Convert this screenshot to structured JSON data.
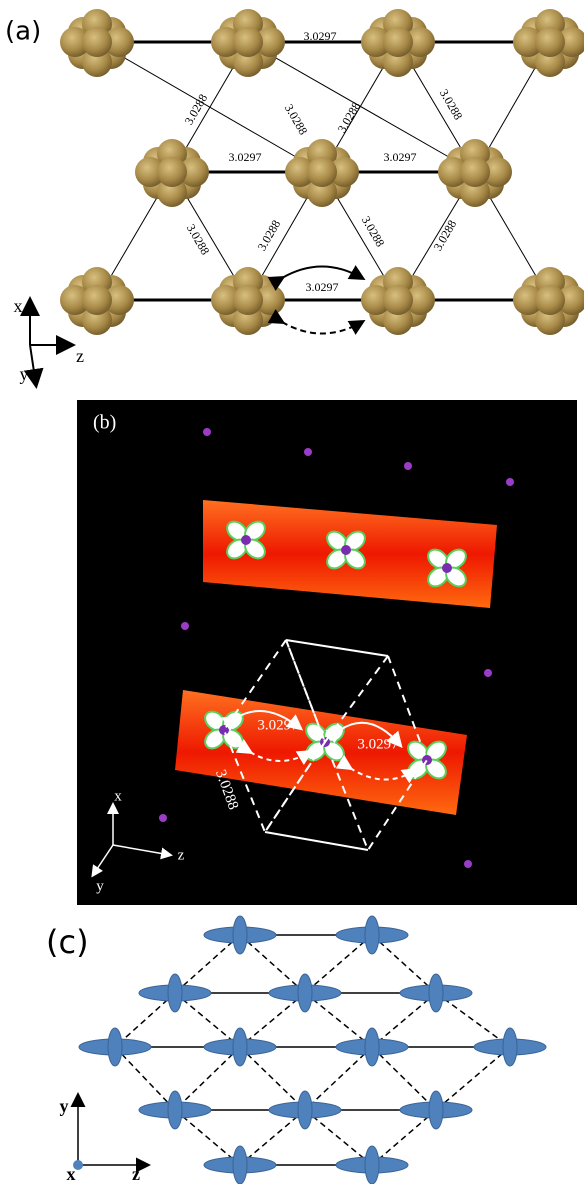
{
  "panel_a": {
    "label": "(a)",
    "distances": [
      "3.0297",
      "3.0288",
      "3.0288",
      "3.0288",
      "3.0288",
      "3.0297",
      "3.0297",
      "3.0288",
      "3.0288",
      "3.0288",
      "3.0288",
      "3.0297"
    ],
    "axes": [
      "x",
      "z",
      "y"
    ]
  },
  "panel_b": {
    "label": "(b)",
    "distances": [
      "3.0297",
      "3.0297",
      "3.0288"
    ],
    "axes": [
      "x",
      "z",
      "y"
    ]
  },
  "panel_c": {
    "label": "(c)",
    "axes": [
      "y",
      "x",
      "z"
    ]
  }
}
